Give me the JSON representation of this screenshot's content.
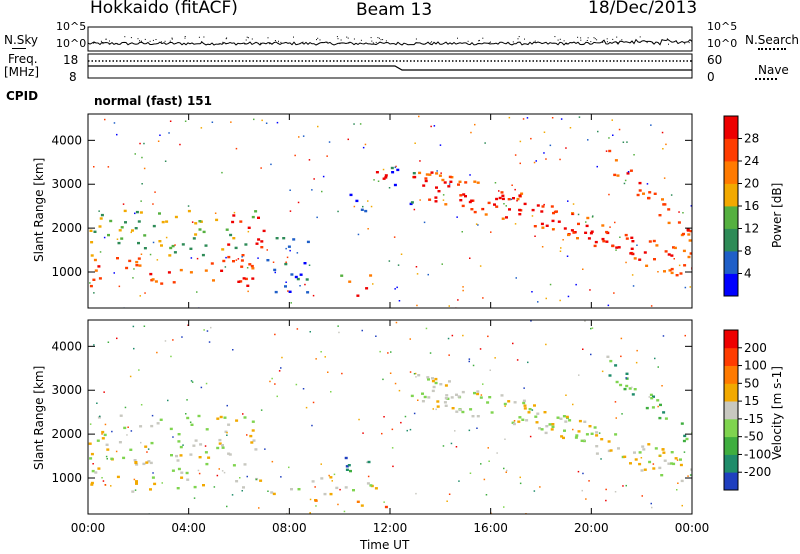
{
  "header": {
    "station": "Hokkaido (fitACF)",
    "beam": "Beam 13",
    "date": "18/Dec/2013"
  },
  "aux": {
    "nsky_label": "N.Sky",
    "nsearch_label": "N.Search",
    "nsky_ticks": [
      "10^5",
      "10^0"
    ],
    "nsearch_ticks": [
      "10^5",
      "10^0"
    ],
    "freq_label": "Freq.",
    "freq_unit": "[MHz]",
    "freq_ticks": [
      "18",
      "8"
    ],
    "nave_label": "Nave",
    "nave_ticks": [
      "60",
      "0"
    ],
    "cpid_label": "CPID",
    "cpid_value": "normal (fast) 151"
  },
  "chart_data": [
    {
      "type": "heatmap",
      "name": "power",
      "ylabel": "Slant Range [km]",
      "ylim": [
        180,
        4600
      ],
      "yticks": [
        1000,
        2000,
        3000,
        4000
      ],
      "xlim": [
        0,
        24
      ],
      "colorbar": {
        "label": "Power [dB]",
        "ticks": [
          "4",
          "8",
          "12",
          "16",
          "20",
          "24",
          "28"
        ],
        "colors": [
          "#0000ff",
          "#1f5fc8",
          "#2e8b57",
          "#55b040",
          "#f2a900",
          "#ff7a00",
          "#ff3c00",
          "#ee0000"
        ]
      },
      "regions": [
        {
          "t0": 0.0,
          "t1": 6.8,
          "r0": 650,
          "r1": 1300,
          "level": 0.78
        },
        {
          "t0": 0.0,
          "t1": 6.8,
          "r0": 1300,
          "r1": 2400,
          "level": 0.45
        },
        {
          "t0": 5.4,
          "t1": 7.0,
          "r0": 700,
          "r1": 2350,
          "level": 0.95
        },
        {
          "t0": 7.0,
          "t1": 8.8,
          "r0": 400,
          "r1": 1800,
          "level": 0.2
        },
        {
          "t0": 8.9,
          "t1": 11.2,
          "r0": 400,
          "r1": 650,
          "level": 1.0
        },
        {
          "t0": 8.9,
          "t1": 11.3,
          "r0": 650,
          "r1": 1000,
          "level": 0.6
        },
        {
          "t0": 10.2,
          "t1": 11.0,
          "r0": 2200,
          "r1": 2800,
          "level": 0.15
        },
        {
          "t0": 11.4,
          "t1": 12.0,
          "r0": 2600,
          "r1": 3300,
          "level": 1.0
        },
        {
          "t0": 12.0,
          "t1": 13.0,
          "r0": 2300,
          "r1": 3500,
          "level": 0.2
        }
      ],
      "bands": [
        {
          "t0": 12.8,
          "t1": 18.0,
          "r_start": 3050,
          "r_end": 2300,
          "width": 700,
          "level": 1.0
        },
        {
          "t0": 18.0,
          "t1": 21.2,
          "r_start": 2300,
          "r_end": 1600,
          "width": 650,
          "level": 1.0
        },
        {
          "t0": 21.2,
          "t1": 24.0,
          "r_start": 1600,
          "r_end": 1100,
          "width": 650,
          "level": 1.0
        },
        {
          "t0": 20.5,
          "t1": 24.0,
          "r_start": 3600,
          "r_end": 1800,
          "width": 450,
          "level": 0.95
        }
      ]
    },
    {
      "type": "heatmap",
      "name": "velocity",
      "ylabel": "Slant Range [km]",
      "xlabel": "Time UT",
      "ylim": [
        180,
        4600
      ],
      "yticks": [
        1000,
        2000,
        3000,
        4000
      ],
      "xlim": [
        0,
        24
      ],
      "xticks": [
        "00:00",
        "04:00",
        "08:00",
        "12:00",
        "16:00",
        "20:00",
        "00:00"
      ],
      "colorbar": {
        "label": "Velocity [m s-1]",
        "ticks": [
          "200",
          "100",
          "50",
          "15",
          "-15",
          "-50",
          "-100",
          "-200"
        ],
        "colors": [
          "#1f3fbf",
          "#1f8c6a",
          "#3fae3f",
          "#7fd44f",
          "#c8c8c0",
          "#f2a900",
          "#ff7a00",
          "#ff3c00",
          "#ee0000"
        ]
      },
      "regions": [
        {
          "t0": 0.0,
          "t1": 6.8,
          "r0": 650,
          "r1": 2400,
          "level": 0.5
        },
        {
          "t0": 6.8,
          "t1": 11.5,
          "r0": 600,
          "r1": 1000,
          "level": 0.5
        },
        {
          "t0": 8.9,
          "t1": 11.0,
          "r0": 300,
          "r1": 500,
          "level": 0.72
        },
        {
          "t0": 10.2,
          "t1": 11.2,
          "r0": 1100,
          "r1": 1600,
          "level": 0.2
        },
        {
          "t0": 11.5,
          "t1": 12.4,
          "r0": 300,
          "r1": 500,
          "level": 0.95
        }
      ],
      "bands": [
        {
          "t0": 12.8,
          "t1": 18.0,
          "r_start": 3050,
          "r_end": 2300,
          "width": 700,
          "level": 0.5
        },
        {
          "t0": 18.0,
          "t1": 21.2,
          "r_start": 2300,
          "r_end": 1600,
          "width": 650,
          "level": 0.5
        },
        {
          "t0": 21.2,
          "t1": 24.0,
          "r_start": 1600,
          "r_end": 1100,
          "width": 650,
          "level": 0.5
        },
        {
          "t0": 20.5,
          "t1": 24.0,
          "r_start": 3600,
          "r_end": 1800,
          "width": 450,
          "level": 0.3
        }
      ]
    }
  ]
}
